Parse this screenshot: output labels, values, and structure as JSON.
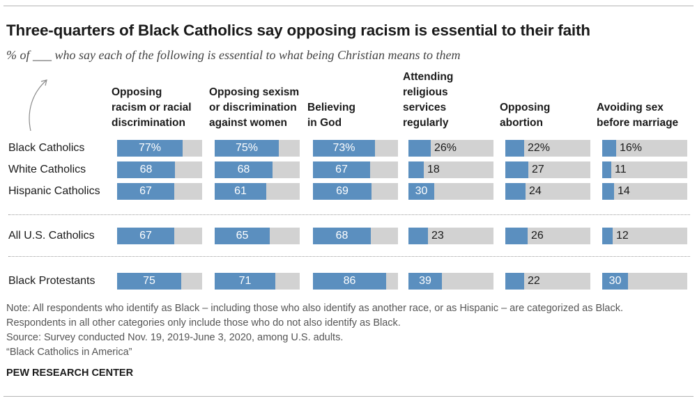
{
  "title": "Three-quarters of Black Catholics say opposing racism is essential to their faith",
  "subtitle": "% of ___ who say each of the following is essential to what being Christian means to them",
  "note_lines": [
    "Note: All respondents who identify as Black – including those who also identify as another race, or as Hispanic – are categorized as Black.",
    "Respondents in all other categories only include those who do not also identify as Black.",
    "Source: Survey conducted Nov. 19, 2019-June 3, 2020, among U.S. adults.",
    "“Black Catholics in America”"
  ],
  "org": "PEW RESEARCH CENTER",
  "colors": {
    "bar": "#5b8fbf",
    "track": "#d2d2d2"
  },
  "chart_data": {
    "type": "bar",
    "orientation": "horizontal",
    "xlim": [
      0,
      100
    ],
    "categories": [
      "Black Catholics",
      "White Catholics",
      "Hispanic Catholics",
      "All U.S. Catholics",
      "Black Protestants"
    ],
    "series": [
      {
        "name": "Opposing\nracism or racial\ndiscrimination",
        "values": [
          77,
          68,
          67,
          67,
          75
        ]
      },
      {
        "name": "Opposing sexism\nor discrimination\nagainst women",
        "values": [
          75,
          68,
          61,
          65,
          71
        ]
      },
      {
        "name": "Believing\nin God",
        "values": [
          73,
          67,
          69,
          68,
          86
        ]
      },
      {
        "name": "Attending\nreligious\nservices\nregularly",
        "values": [
          26,
          18,
          30,
          23,
          39
        ]
      },
      {
        "name": "Opposing\nabortion",
        "values": [
          22,
          27,
          24,
          26,
          22
        ]
      },
      {
        "name": "Avoiding sex\nbefore marriage",
        "values": [
          16,
          11,
          14,
          12,
          30
        ]
      }
    ],
    "value_labels": [
      [
        "77%",
        "68",
        "67",
        "67",
        "75"
      ],
      [
        "75%",
        "68",
        "61",
        "65",
        "71"
      ],
      [
        "73%",
        "67",
        "69",
        "68",
        "86"
      ],
      [
        "26%",
        "18",
        "30",
        "23",
        "39"
      ],
      [
        "22%",
        "27",
        "24",
        "26",
        "22"
      ],
      [
        "16%",
        "11",
        "14",
        "12",
        "30"
      ]
    ]
  }
}
